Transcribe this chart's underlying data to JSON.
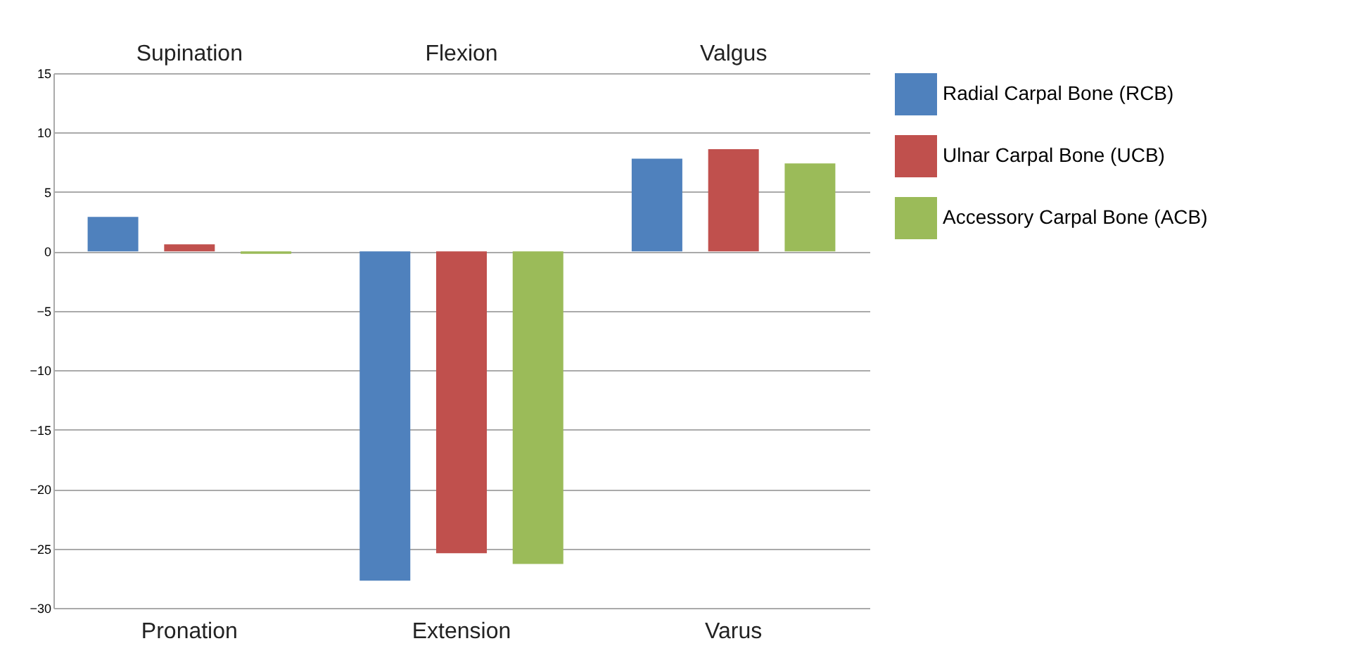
{
  "chart_data": {
    "type": "bar",
    "categories": [
      "Pronation",
      "Extension",
      "Varus"
    ],
    "annotations": [
      "Supination",
      "Flexion",
      "Valgus"
    ],
    "series": [
      {
        "name": "Radial Carpal Bone (RCB)",
        "color": "#4f81bd",
        "values": [
          2.9,
          -27.7,
          7.8
        ]
      },
      {
        "name": "Ulnar Carpal Bone (UCB)",
        "color": "#c0504d",
        "values": [
          0.6,
          -25.4,
          8.6
        ]
      },
      {
        "name": "Accessory Carpal Bone (ACB)",
        "color": "#9bbb59",
        "values": [
          -0.2,
          -26.3,
          7.4
        ]
      }
    ],
    "ylim": [
      -30,
      15
    ],
    "yticks": [
      -30,
      -25,
      -20,
      -15,
      -10,
      -5,
      0,
      5,
      10,
      15
    ],
    "grid": "y",
    "legend": "right"
  }
}
